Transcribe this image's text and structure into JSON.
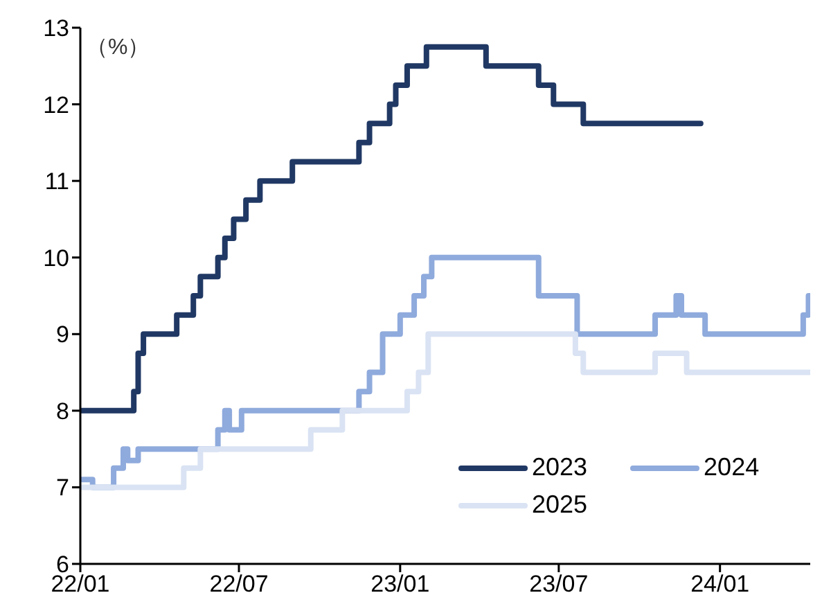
{
  "chart_data": {
    "type": "step",
    "ylabel": "（%）",
    "xlim": [
      "2022-01-01",
      "2024-04-13"
    ],
    "xticks": [
      {
        "value": "2022-01-01",
        "label": "22/01"
      },
      {
        "value": "2022-07-01",
        "label": "22/07"
      },
      {
        "value": "2023-01-01",
        "label": "23/01"
      },
      {
        "value": "2023-07-01",
        "label": "23/07"
      },
      {
        "value": "2024-01-01",
        "label": "24/01"
      }
    ],
    "ylim": [
      6,
      13
    ],
    "yticks": [
      6,
      7,
      8,
      9,
      10,
      11,
      12,
      13
    ],
    "grid": false,
    "legend": "bottom right",
    "marker": "none",
    "line_style": "solid",
    "series": [
      {
        "name": "2023",
        "color": "#203864",
        "x": [
          "2022-01-01",
          "2022-03-03",
          "2022-03-08",
          "2022-03-14",
          "2022-04-21",
          "2022-05-10",
          "2022-05-18",
          "2022-06-07",
          "2022-06-15",
          "2022-06-25",
          "2022-07-09",
          "2022-07-25",
          "2022-08-31",
          "2022-11-15",
          "2022-11-27",
          "2022-12-20",
          "2022-12-27",
          "2023-01-09",
          "2023-01-31",
          "2023-04-09",
          "2023-06-08",
          "2023-06-25",
          "2023-07-29",
          "2023-12-10"
        ],
        "values": [
          8,
          8.25,
          8.75,
          9,
          9.25,
          9.5,
          9.75,
          10,
          10.25,
          10.5,
          10.75,
          11,
          11.25,
          11.5,
          11.75,
          12,
          12.25,
          12.5,
          12.75,
          12.5,
          12.25,
          12,
          11.75,
          11.75
        ]
      },
      {
        "name": "2024",
        "color": "#8faadc",
        "x": [
          "2022-01-01",
          "2022-01-15",
          "2022-02-08",
          "2022-02-19",
          "2022-02-24",
          "2022-03-08",
          "2022-06-07",
          "2022-06-15",
          "2022-06-20",
          "2022-07-04",
          "2022-11-15",
          "2022-11-27",
          "2022-12-12",
          "2023-01-01",
          "2023-01-17",
          "2023-01-28",
          "2023-02-06",
          "2023-06-08",
          "2023-07-22",
          "2023-10-19",
          "2023-11-12",
          "2023-11-18",
          "2023-12-15",
          "2024-04-05",
          "2024-04-11",
          "2024-04-13"
        ],
        "values": [
          7.1,
          7,
          7.25,
          7.5,
          7.35,
          7.5,
          7.75,
          8,
          7.75,
          8,
          8.25,
          8.5,
          9,
          9.25,
          9.5,
          9.75,
          10,
          9.5,
          9,
          9.25,
          9.5,
          9.25,
          9,
          9.25,
          9.5,
          9.5
        ]
      },
      {
        "name": "2025",
        "color": "#dae3f3",
        "x": [
          "2022-01-01",
          "2022-04-29",
          "2022-05-18",
          "2022-09-21",
          "2022-10-27",
          "2023-01-09",
          "2023-01-22",
          "2023-02-02",
          "2023-07-20",
          "2023-07-29",
          "2023-10-19",
          "2023-11-24",
          "2024-04-13"
        ],
        "values": [
          7,
          7.25,
          7.5,
          7.75,
          8,
          8.25,
          8.5,
          9,
          8.75,
          8.5,
          8.75,
          8.5,
          8.5
        ]
      }
    ]
  }
}
